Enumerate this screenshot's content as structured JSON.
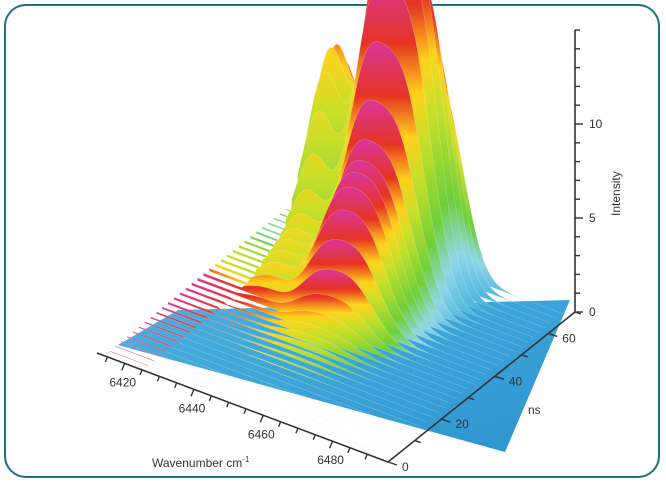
{
  "chart_data": {
    "type": "surface3d",
    "x_axis": {
      "label": "Wavenumber cm",
      "label_superscript": "-1",
      "ticks": [
        6420,
        6440,
        6460,
        6480
      ],
      "range": [
        6412,
        6496
      ]
    },
    "y_axis": {
      "label": "ns",
      "ticks": [
        0,
        20,
        40,
        60
      ],
      "range": [
        0,
        70
      ]
    },
    "z_axis": {
      "label": "Intensity",
      "ticks": [
        0,
        5,
        10
      ],
      "range": [
        0,
        15
      ]
    },
    "surface": {
      "description_peaks": [
        {
          "x": 6432,
          "y": 68,
          "z": 12.0
        },
        {
          "x": 6447,
          "y": 62,
          "z": 14.8
        },
        {
          "x": 6456,
          "y": 60,
          "z": 10.5
        },
        {
          "x": 6462,
          "y": 64,
          "z": 8.0
        }
      ],
      "onset_x": 6426,
      "color_scale": [
        "#2aa6d6",
        "#8fd6e8",
        "#6fcf3a",
        "#ffd21a",
        "#e53322",
        "#d9369c"
      ]
    },
    "grid": false,
    "legend": "none"
  },
  "colors": {
    "frame_border": "#1f6f86",
    "axis": "#333333"
  }
}
